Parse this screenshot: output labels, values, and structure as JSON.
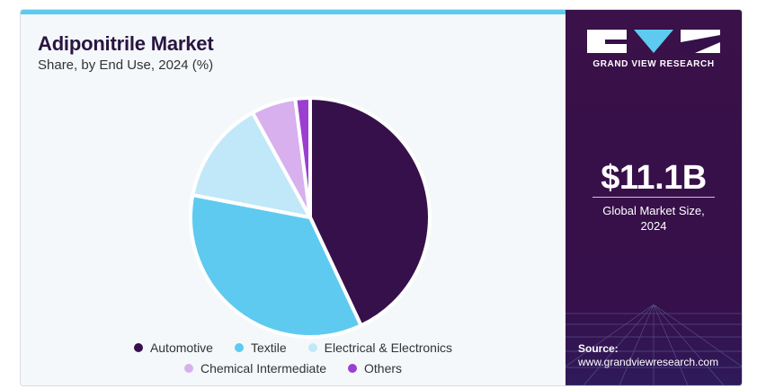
{
  "colors": {
    "accent_bar": "#5ecaf0",
    "panel": "#36104a"
  },
  "chart_data": {
    "type": "pie",
    "title": "Adiponitrile Market",
    "subtitle": "Share, by End Use, 2024 (%)",
    "categories": [
      "Automotive",
      "Textile",
      "Electrical & Electronics",
      "Chemical Intermediate",
      "Others"
    ],
    "values": [
      43,
      35,
      14,
      6,
      2
    ],
    "unit": "%",
    "colors": [
      "#36104a",
      "#5ecaf0",
      "#c0e8f8",
      "#d8b0ee",
      "#9b3fd1"
    ],
    "legend_position": "bottom",
    "grid": false
  },
  "brand": {
    "name": "GRAND VIEW RESEARCH",
    "logo_icon": "gvr-logo-icon"
  },
  "stat": {
    "value": "$11.1B",
    "caption_line1": "Global Market Size,",
    "caption_line2": "2024"
  },
  "source": {
    "label": "Source:",
    "url": "www.grandviewresearch.com"
  }
}
